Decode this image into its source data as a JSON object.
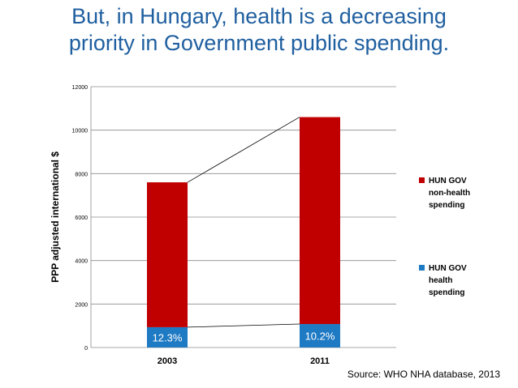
{
  "title_lines": [
    "But, in Hungary, health is a decreasing",
    "priority in Government public spending."
  ],
  "source": "Source: WHO NHA database, 2013",
  "chart_data": {
    "type": "bar",
    "stacked": true,
    "categories": [
      "2003",
      "2011"
    ],
    "series": [
      {
        "name": "HUN GOV health spending",
        "values": [
          935,
          1080
        ],
        "color": "#1f7ac4",
        "labels": [
          "12.3%",
          "10.2%"
        ]
      },
      {
        "name": "HUN GOV non-health spending",
        "values": [
          6665,
          9520
        ],
        "color": "#c00000"
      }
    ],
    "ylabel": "PPP adjusted international $",
    "ylim": [
      0,
      12000
    ],
    "yticks": [
      0,
      2000,
      4000,
      6000,
      8000,
      10000,
      12000
    ],
    "grid": true,
    "legend": [
      {
        "lines": [
          "HUN GOV",
          "non-health",
          "spending"
        ],
        "color": "#c00000"
      },
      {
        "lines": [
          "HUN GOV",
          "health",
          "spending"
        ],
        "color": "#1f7ac4"
      }
    ],
    "legend_position": "right"
  }
}
